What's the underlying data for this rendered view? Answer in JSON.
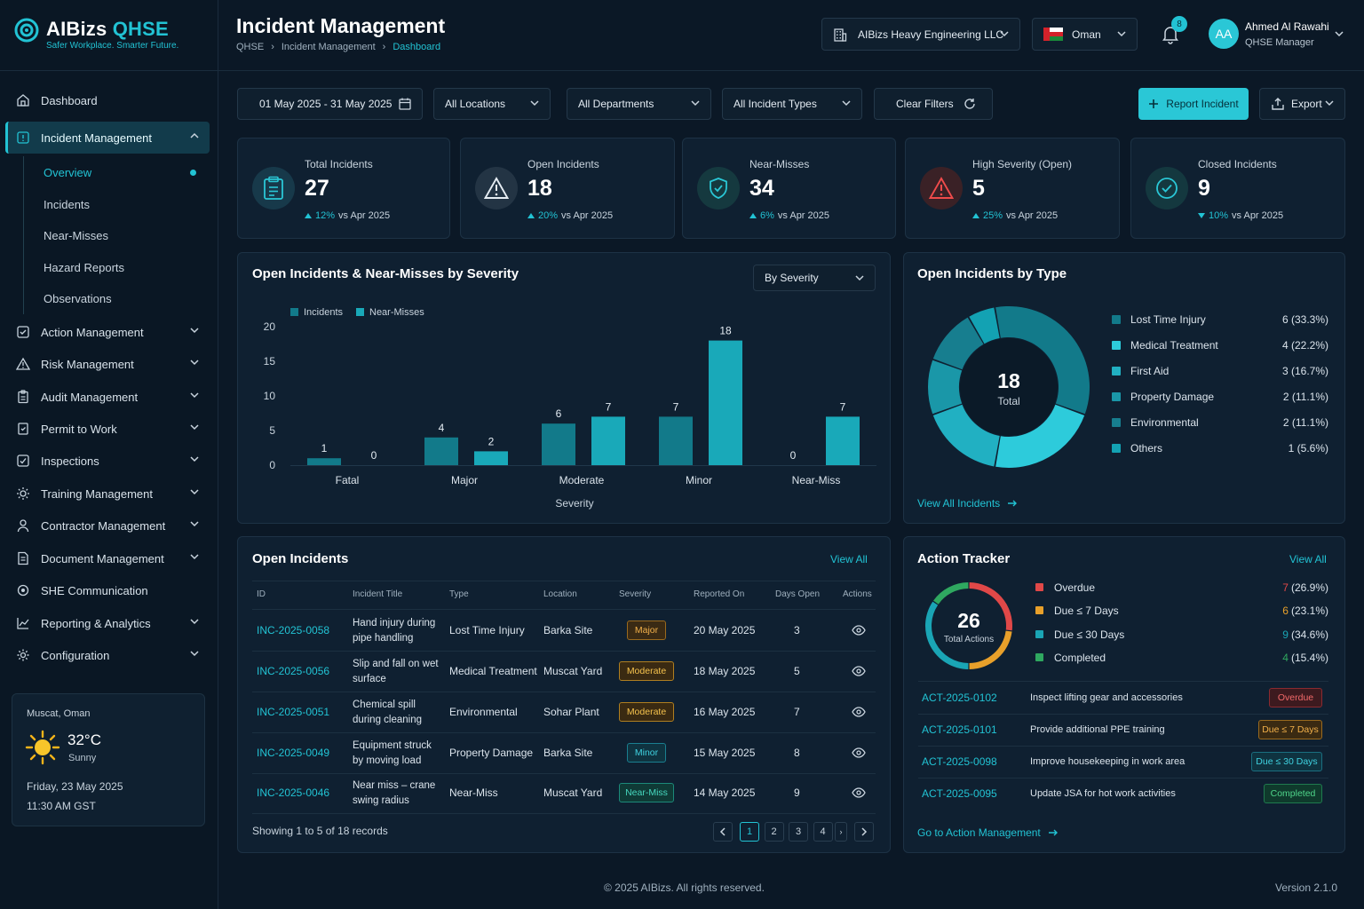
{
  "brand": {
    "name_main": "AIBizs",
    "name_accent": "QHSE",
    "tagline": "Safer Workplace. Smarter Future."
  },
  "header": {
    "title": "Incident Management",
    "breadcrumbs": [
      "QHSE",
      "Incident Management",
      "Dashboard"
    ],
    "company": "AIBizs Heavy Engineering LLC",
    "country": "Oman",
    "notification_count": "8",
    "user": {
      "initials": "AA",
      "name": "Ahmed Al Rawahi",
      "role": "QHSE Manager"
    }
  },
  "sidebar": {
    "items": [
      {
        "label": "Dashboard",
        "icon": "home-icon"
      },
      {
        "label": "Incident Management",
        "icon": "alert-square-icon",
        "active": true
      },
      {
        "label": "Action Management",
        "icon": "check-square-icon"
      },
      {
        "label": "Risk Management",
        "icon": "warning-icon"
      },
      {
        "label": "Audit Management",
        "icon": "clipboard-icon"
      },
      {
        "label": "Permit to Work",
        "icon": "permit-icon"
      },
      {
        "label": "Inspections",
        "icon": "checklist-icon"
      },
      {
        "label": "Training Management",
        "icon": "training-icon"
      },
      {
        "label": "Contractor Management",
        "icon": "person-icon"
      },
      {
        "label": "Document Management",
        "icon": "document-icon"
      },
      {
        "label": "SHE Communication",
        "icon": "megaphone-icon"
      },
      {
        "label": "Reporting & Analytics",
        "icon": "chart-icon"
      },
      {
        "label": "Configuration",
        "icon": "gear-icon"
      }
    ],
    "sub_items": [
      "Overview",
      "Incidents",
      "Near-Misses",
      "Hazard Reports",
      "Observations"
    ]
  },
  "weather": {
    "location": "Muscat, Oman",
    "temp": "32°C",
    "condition": "Sunny",
    "date": "Friday, 23 May 2025",
    "time": "11:30 AM GST"
  },
  "filters": {
    "date_range": "01 May 2025 - 31 May 2025",
    "location": "All Locations",
    "department": "All Departments",
    "incident_type": "All Incident Types",
    "clear_label": "Clear Filters",
    "report_label": "Report Incident",
    "export_label": "Export"
  },
  "kpis": [
    {
      "label": "Total Incidents",
      "value": "27",
      "change": "12%",
      "direction": "up",
      "compare": "vs Apr 2025",
      "icon": "clipboard-icon"
    },
    {
      "label": "Open Incidents",
      "value": "18",
      "change": "20%",
      "direction": "up",
      "compare": "vs Apr 2025",
      "icon": "warning-icon"
    },
    {
      "label": "Near-Misses",
      "value": "34",
      "change": "6%",
      "direction": "up",
      "compare": "vs Apr 2025",
      "icon": "shield-check-icon"
    },
    {
      "label": "High Severity (Open)",
      "value": "5",
      "change": "25%",
      "direction": "up",
      "compare": "vs Apr 2025",
      "icon": "alert-triangle-icon"
    },
    {
      "label": "Closed Incidents",
      "value": "9",
      "change": "10%",
      "direction": "down",
      "compare": "vs Apr 2025",
      "icon": "check-circle-icon"
    }
  ],
  "severity_panel": {
    "title": "Open Incidents & Near-Misses by Severity",
    "dropdown": "By Severity"
  },
  "chart_data": [
    {
      "type": "bar",
      "title": "Open Incidents & Near-Misses by Severity",
      "categories": [
        "Fatal",
        "Major",
        "Moderate",
        "Minor",
        "Near-Miss"
      ],
      "series": [
        {
          "name": "Incidents",
          "values": [
            1,
            4,
            6,
            7,
            0
          ],
          "color": "#127a8a"
        },
        {
          "name": "Near-Misses",
          "values": [
            0,
            2,
            7,
            18,
            7
          ],
          "color": "#19a9b9"
        }
      ],
      "xlabel": "Severity",
      "ylabel": "",
      "ylim": [
        0,
        20
      ],
      "yticks": [
        0,
        5,
        10,
        15,
        20
      ],
      "legend": "top-left",
      "grid": false
    },
    {
      "type": "pie",
      "title": "Open Incidents by Type",
      "center_value": "18",
      "center_label": "Total",
      "slices": [
        {
          "name": "Lost Time Injury",
          "value": 6,
          "label": "6 (33.3%)",
          "color": "#127a8a"
        },
        {
          "name": "Medical Treatment",
          "value": 4,
          "label": "4 (22.2%)",
          "color": "#2dcbdb"
        },
        {
          "name": "First Aid",
          "value": 3,
          "label": "3 (16.7%)",
          "color": "#21b0c2"
        },
        {
          "name": "Property Damage",
          "value": 2,
          "label": "2 (11.1%)",
          "color": "#1a97a8"
        },
        {
          "name": "Environmental",
          "value": 2,
          "label": "2 (11.1%)",
          "color": "#177e8f"
        },
        {
          "name": "Others",
          "value": 1,
          "label": "1 (5.6%)",
          "color": "#13a2b3"
        }
      ]
    },
    {
      "type": "pie",
      "title": "Action Tracker",
      "center_value": "26",
      "center_label": "Total Actions",
      "slices": [
        {
          "name": "Overdue",
          "value": 7,
          "pct": "(26.9%)",
          "color": "#e04848"
        },
        {
          "name": "Due ≤ 7 Days",
          "value": 6,
          "pct": "(23.1%)",
          "color": "#e8a02a"
        },
        {
          "name": "Due ≤ 30 Days",
          "value": 9,
          "pct": "(34.6%)",
          "color": "#1aa5b5"
        },
        {
          "name": "Completed",
          "value": 4,
          "pct": "(15.4%)",
          "color": "#2fa860"
        }
      ]
    }
  ],
  "type_panel": {
    "title": "Open Incidents by Type",
    "view_all": "View All Incidents"
  },
  "incidents_table": {
    "title": "Open Incidents",
    "view_all": "View All",
    "columns": [
      "ID",
      "Incident Title",
      "Type",
      "Location",
      "Severity",
      "Reported On",
      "Days Open",
      "Actions"
    ],
    "rows": [
      {
        "id": "INC-2025-0058",
        "title": "Hand injury during pipe handling",
        "type": "Lost Time Injury",
        "location": "Barka Site",
        "severity": "Major",
        "reported": "20 May 2025",
        "days": "3"
      },
      {
        "id": "INC-2025-0056",
        "title": "Slip and fall on wet surface",
        "type": "Medical Treatment",
        "location": "Muscat Yard",
        "severity": "Moderate",
        "reported": "18 May 2025",
        "days": "5"
      },
      {
        "id": "INC-2025-0051",
        "title": "Chemical spill during cleaning",
        "type": "Environmental",
        "location": "Sohar Plant",
        "severity": "Moderate",
        "reported": "16 May 2025",
        "days": "7"
      },
      {
        "id": "INC-2025-0049",
        "title": "Equipment struck by moving load",
        "type": "Property Damage",
        "location": "Barka Site",
        "severity": "Minor",
        "reported": "15 May 2025",
        "days": "8"
      },
      {
        "id": "INC-2025-0046",
        "title": "Near miss – crane swing radius",
        "type": "Near-Miss",
        "location": "Muscat Yard",
        "severity": "Near-Miss",
        "reported": "14 May 2025",
        "days": "9"
      }
    ],
    "showing": "Showing 1 to 5 of 18 records",
    "pages": [
      "1",
      "2",
      "3",
      "4"
    ]
  },
  "severity_colors": {
    "Major": {
      "bg": "#3a2a14",
      "border": "#9a6a1e",
      "text": "#f2b04a"
    },
    "Moderate": {
      "bg": "#3a2a12",
      "border": "#b07f20",
      "text": "#f5c24d"
    },
    "Minor": {
      "bg": "#0f3340",
      "border": "#1a7f90",
      "text": "#3fd2e0"
    },
    "Near-Miss": {
      "bg": "#0f3a36",
      "border": "#1c8a7a",
      "text": "#46d8bf"
    }
  },
  "action_tracker": {
    "title": "Action Tracker",
    "view_all": "View All",
    "actions": [
      {
        "id": "ACT-2025-0102",
        "text": "Inspect lifting gear and accessories",
        "status": "Overdue"
      },
      {
        "id": "ACT-2025-0101",
        "text": "Provide additional PPE training",
        "status": "Due ≤ 7 Days"
      },
      {
        "id": "ACT-2025-0098",
        "text": "Improve housekeeping in work area",
        "status": "Due ≤ 30 Days"
      },
      {
        "id": "ACT-2025-0095",
        "text": "Update JSA for hot work activities",
        "status": "Completed"
      }
    ],
    "footer_link": "Go to Action Management"
  },
  "footer": {
    "copyright": "© 2025 AIBizs. All rights reserved.",
    "version": "Version 2.1.0"
  }
}
